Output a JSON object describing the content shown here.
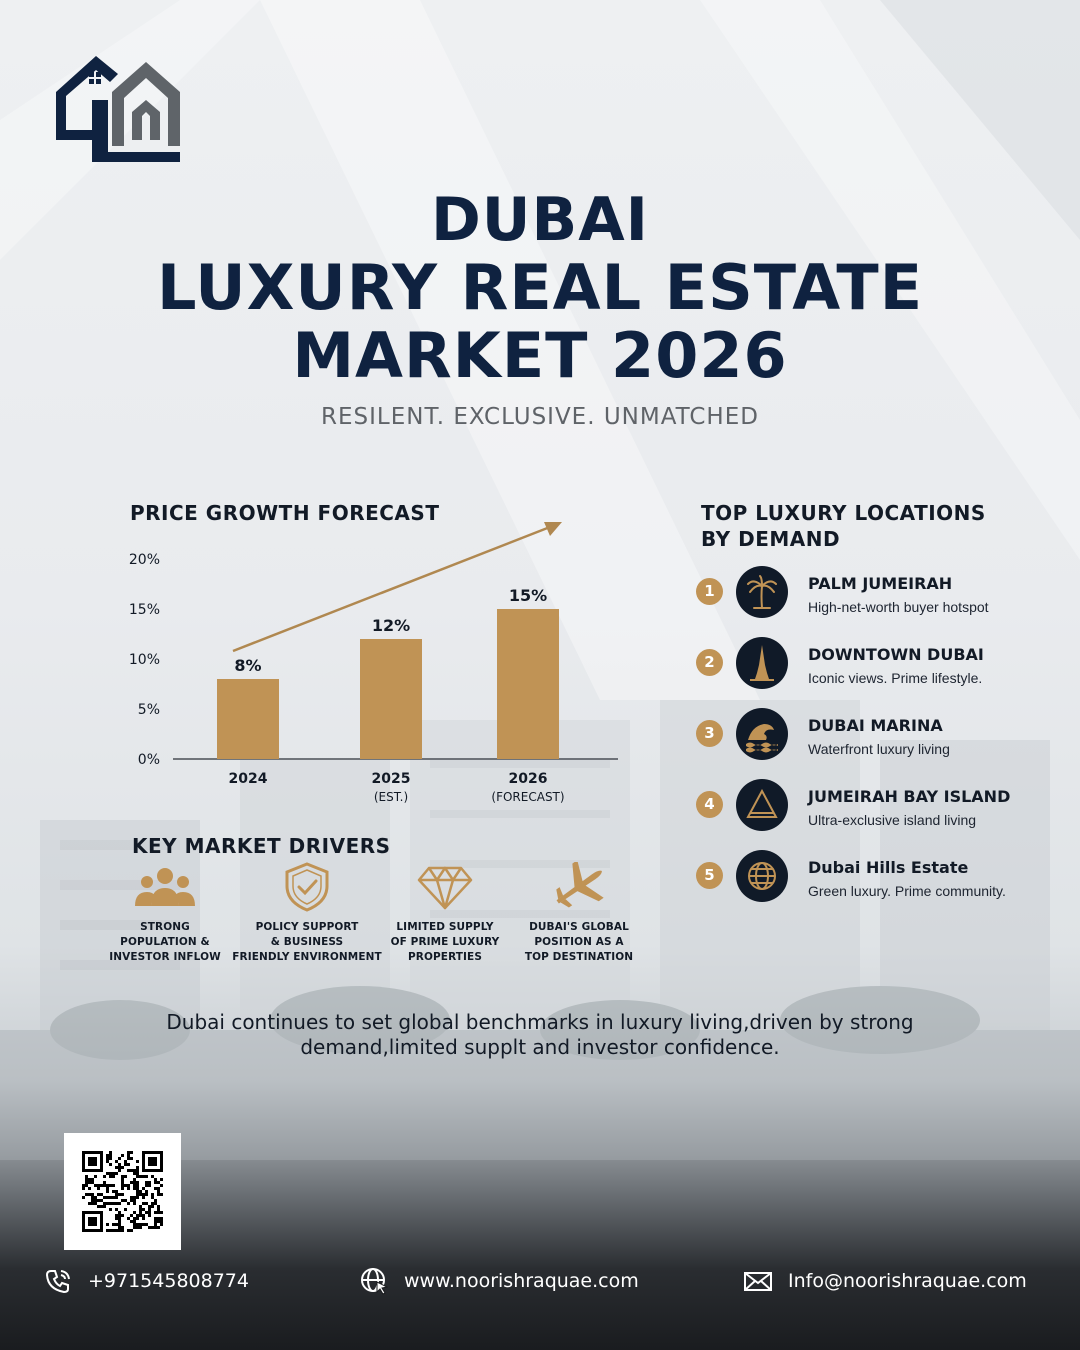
{
  "title": {
    "line1": "DUBAI",
    "line2": "LUXURY REAL ESTATE",
    "line3": "MARKET 2026"
  },
  "subtitle": "RESILENT. EXCLUSIVE. UNMATCHED",
  "colors": {
    "navy": "#0f2240",
    "gold": "#c09355",
    "dark": "#101a28"
  },
  "price_growth": {
    "heading": "PRICE GROWTH FORECAST",
    "chart_data": {
      "type": "bar",
      "categories": [
        "2024",
        "2025",
        "2026"
      ],
      "category_sublabels": [
        "",
        "(EST.)",
        "(FORECAST)"
      ],
      "values": [
        8,
        12,
        15
      ],
      "value_labels": [
        "8%",
        "12%",
        "15%"
      ],
      "ylim": [
        0,
        20
      ],
      "y_ticks": [
        "0%",
        "5%",
        "10%",
        "15%",
        "20%"
      ],
      "trend_arrow": true,
      "grid": false
    }
  },
  "locations": {
    "heading_line1": "TOP LUXURY LOCATIONS",
    "heading_line2": "BY DEMAND",
    "items": [
      {
        "num": "1",
        "name": "PALM JUMEIRAH",
        "desc": "High-net-worth buyer hotspot",
        "icon": "palm-tree-icon"
      },
      {
        "num": "2",
        "name": "DOWNTOWN DUBAI",
        "desc": "Iconic views. Prime lifestyle.",
        "icon": "burj-khalifa-icon"
      },
      {
        "num": "3",
        "name": "DUBAI MARINA",
        "desc": "Waterfront luxury living",
        "icon": "wave-icon"
      },
      {
        "num": "4",
        "name": "JUMEIRAH BAY ISLAND",
        "desc": "Ultra-exclusive island living",
        "icon": "triangle-island-icon"
      },
      {
        "num": "5",
        "name": "Dubai Hills Estate",
        "desc": "Green luxury. Prime community.",
        "icon": "globe-icon"
      }
    ]
  },
  "drivers": {
    "heading": "KEY MARKET DRIVERS",
    "items": [
      {
        "line1": "STRONG",
        "line2": "POPULATION &",
        "line3": "INVESTOR INFLOW",
        "icon": "people-group-icon"
      },
      {
        "line1": "POLICY SUPPORT",
        "line2": "& BUSINESS",
        "line3": "FRIENDLY ENVIRONMENT",
        "icon": "shield-check-icon"
      },
      {
        "line1": "LIMITED SUPPLY",
        "line2": "OF PRIME LUXURY",
        "line3": "PROPERTIES",
        "icon": "diamond-icon"
      },
      {
        "line1": "DUBAI'S GLOBAL",
        "line2": "POSITION AS A",
        "line3": "TOP DESTINATION",
        "icon": "airplane-icon"
      }
    ]
  },
  "summary": {
    "line1": "Dubai continues to set global benchmarks in luxury living,driven by strong",
    "line2": "demand,limited supplt and investor confidence."
  },
  "contact": {
    "phone": "+971545808774",
    "website": "www.noorishraquae.com",
    "email": "Info@noorishraquae.com"
  }
}
